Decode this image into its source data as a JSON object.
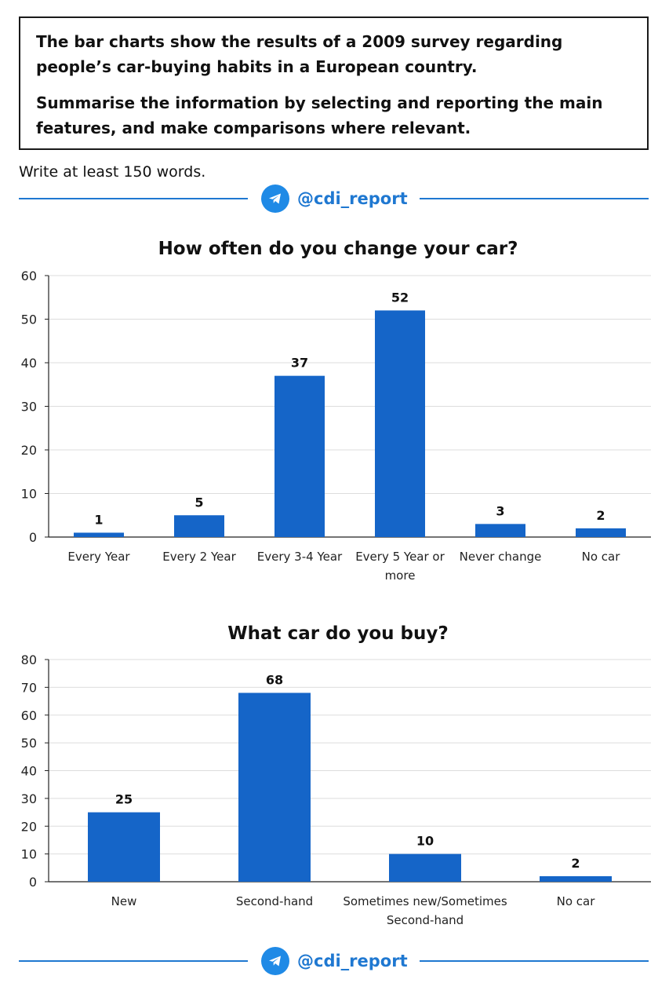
{
  "prompt": {
    "paragraph1": "The bar charts show the results of a 2009 survey regarding people’s car-buying habits in a European country.",
    "paragraph2": "Summarise the information by selecting and reporting the main features, and make comparisons where relevant."
  },
  "instruction": "Write at least 150 words.",
  "divider": {
    "handle": "@cdi_report",
    "icon": "telegram-icon",
    "accent": "#1f78d1"
  },
  "colors": {
    "bar": "#1565c8",
    "grid": "#dddddd",
    "axis": "#222222"
  },
  "chart_data": [
    {
      "type": "bar",
      "title": "How often do you change your car?",
      "xlabel": "",
      "ylabel": "",
      "categories": [
        [
          "Every Year"
        ],
        [
          "Every 2 Year"
        ],
        [
          "Every 3-4 Year"
        ],
        [
          "Every 5 Year or",
          "more"
        ],
        [
          "Never change"
        ],
        [
          "No car"
        ]
      ],
      "values": [
        1,
        5,
        37,
        52,
        3,
        2
      ],
      "ylim": [
        0,
        60
      ],
      "yticks": [
        0,
        10,
        20,
        30,
        40,
        50,
        60
      ],
      "grid": true,
      "data_labels": true
    },
    {
      "type": "bar",
      "title": "What car do you buy?",
      "xlabel": "",
      "ylabel": "",
      "categories": [
        [
          "New"
        ],
        [
          "Second-hand"
        ],
        [
          "Sometimes new/Sometimes",
          "Second-hand"
        ],
        [
          "No car"
        ]
      ],
      "values": [
        25,
        68,
        10,
        2
      ],
      "ylim": [
        0,
        80
      ],
      "yticks": [
        0,
        10,
        20,
        30,
        40,
        50,
        60,
        70,
        80
      ],
      "grid": true,
      "data_labels": true
    }
  ]
}
